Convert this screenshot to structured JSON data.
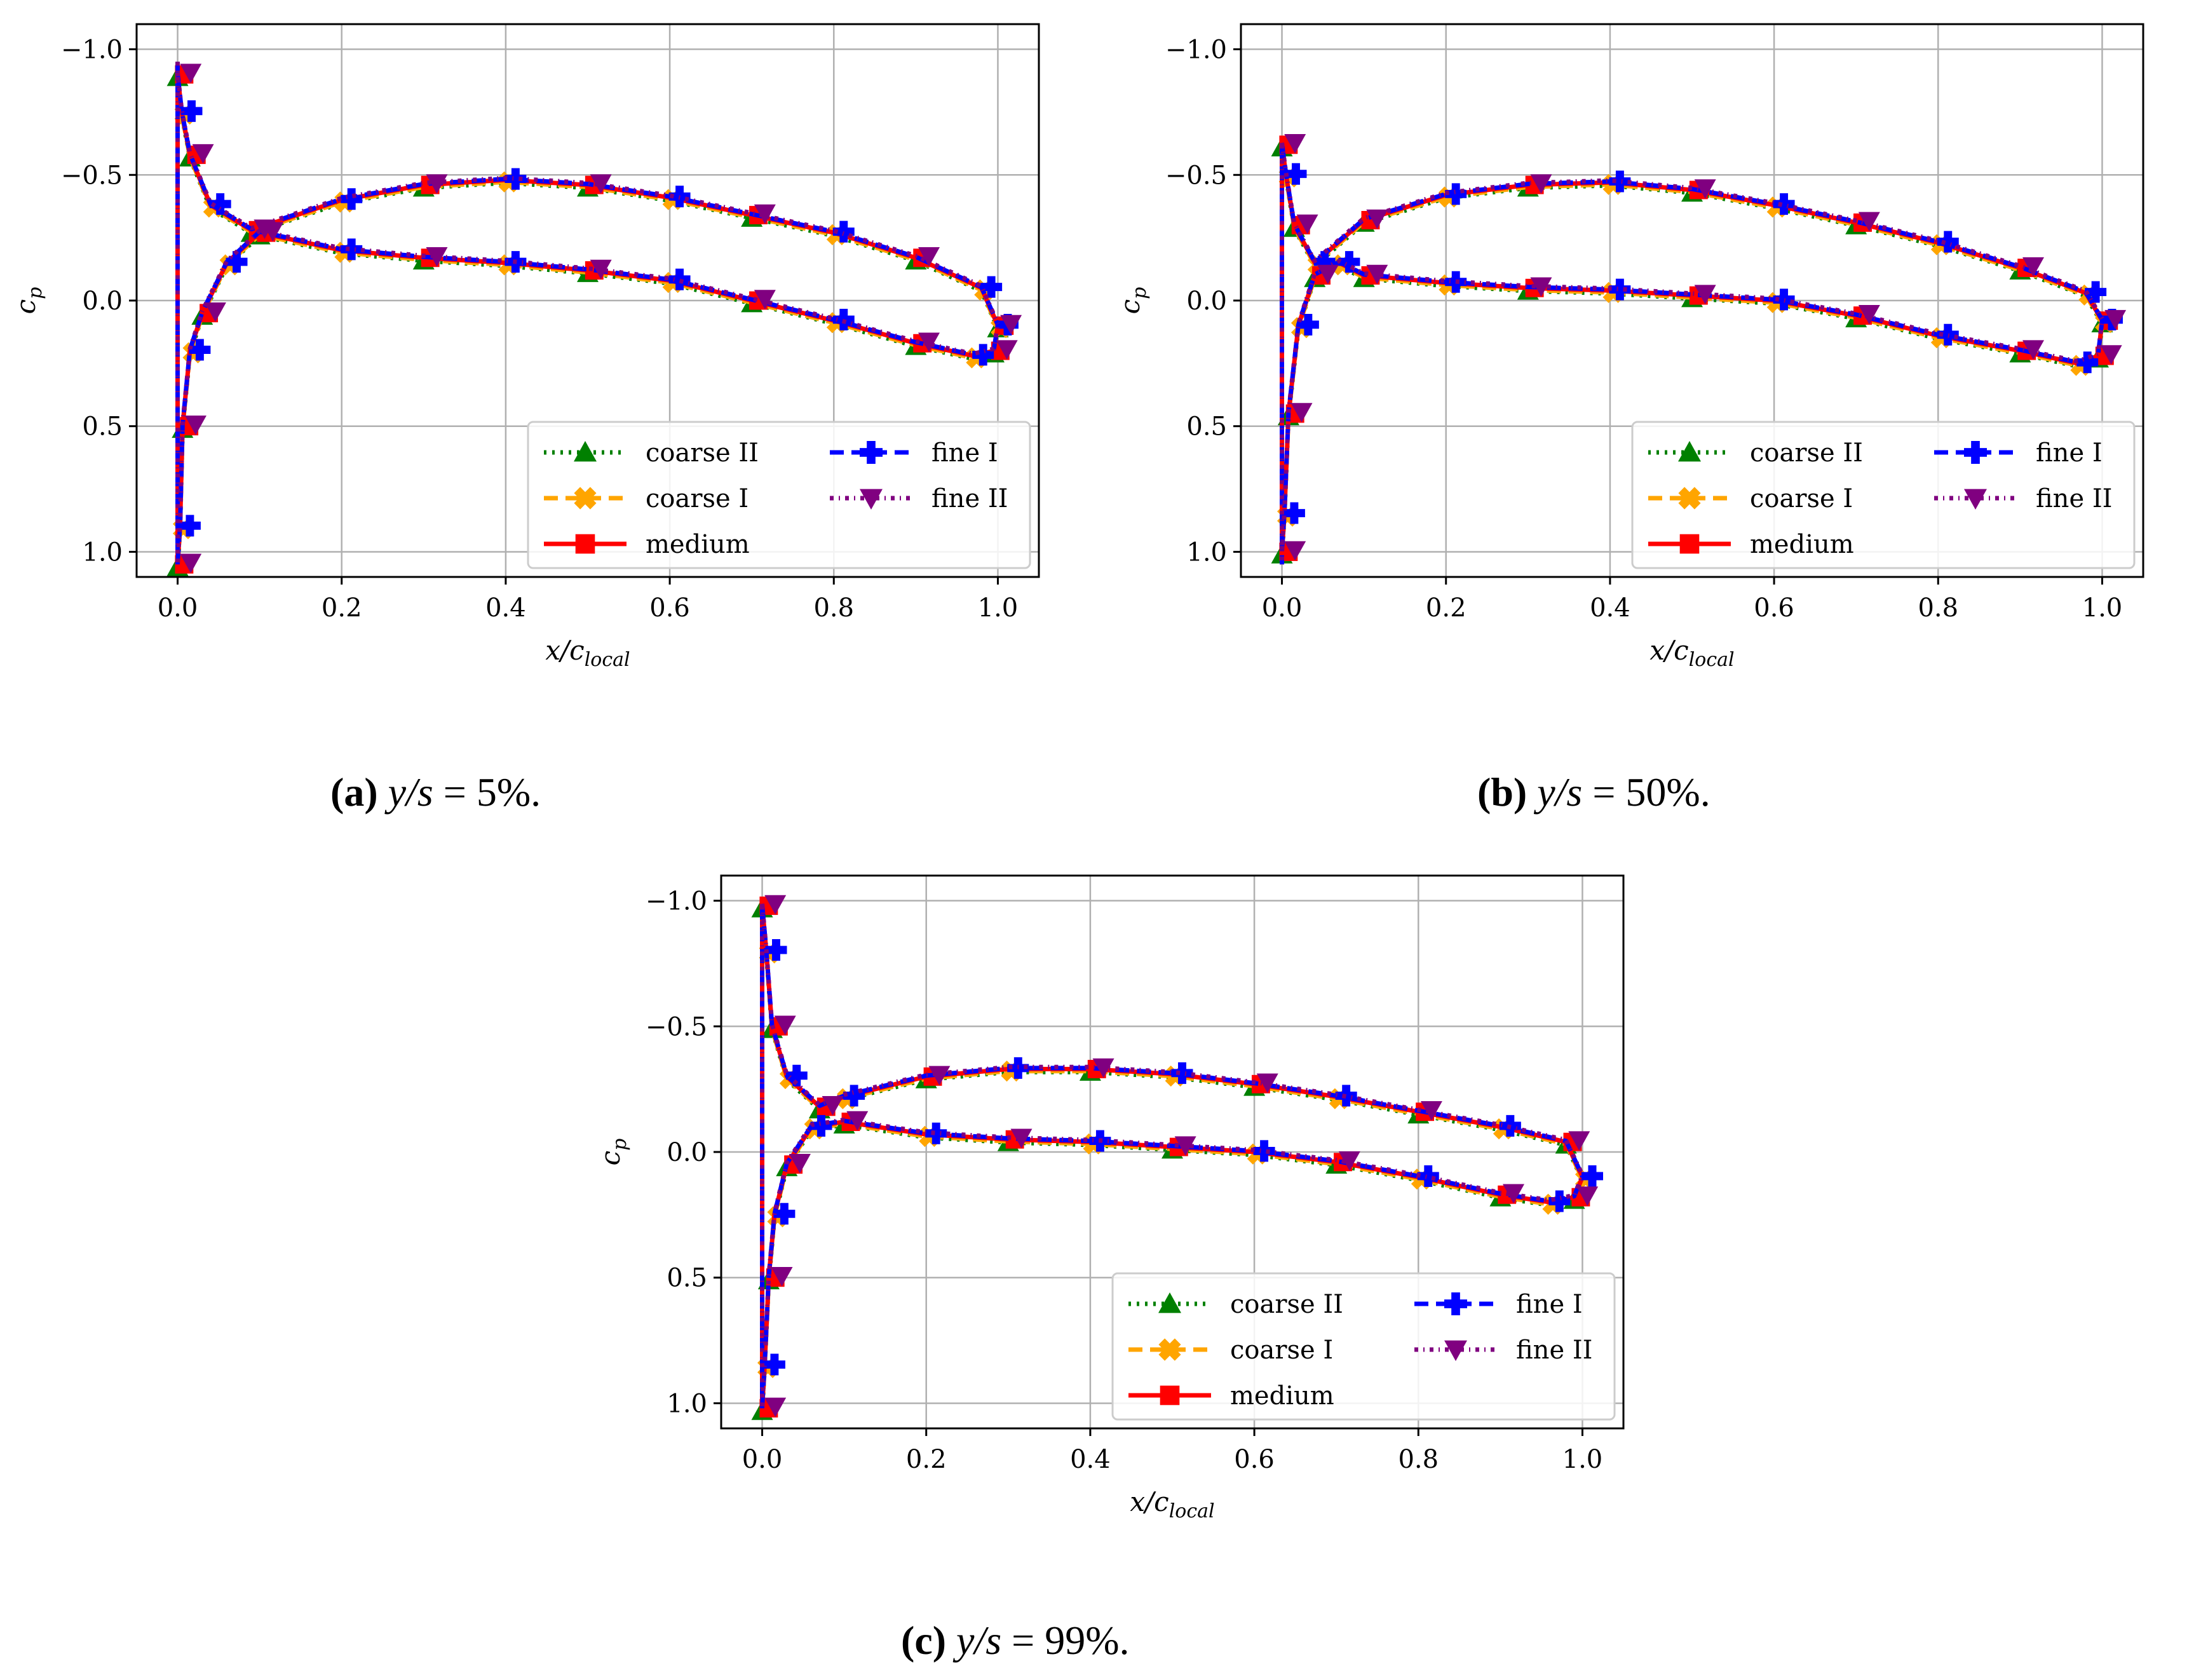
{
  "series_styles": [
    {
      "key": "coarse_ii",
      "name": "coarse II",
      "color": "#008000",
      "marker": "triangle-up",
      "dash": "dotted",
      "jitter": 0.012
    },
    {
      "key": "coarse_i",
      "name": "coarse I",
      "color": "#FFA500",
      "marker": "x-filled",
      "dash": "dashed",
      "jitter": 0.008
    },
    {
      "key": "medium",
      "name": "medium",
      "color": "#FF0000",
      "marker": "square",
      "dash": "solid",
      "jitter": 0.0
    },
    {
      "key": "fine_i",
      "name": "fine I",
      "color": "#0000FF",
      "marker": "plus-filled",
      "dash": "dashed",
      "jitter": -0.004
    },
    {
      "key": "fine_ii",
      "name": "fine II",
      "color": "#800080",
      "marker": "triangle-down",
      "dash": "dashdot",
      "jitter": -0.008
    }
  ],
  "chart_data": [
    {
      "id": "a",
      "type": "line",
      "xlabel": "x/c",
      "xlabel_sub": "local",
      "ylabel": "c",
      "ylabel_sub": "p",
      "xlim": [
        -0.05,
        1.05
      ],
      "ylim": [
        1.1,
        -1.1
      ],
      "y_inverted": true,
      "xticks": [
        0.0,
        0.2,
        0.4,
        0.6,
        0.8,
        1.0
      ],
      "xtick_labels": [
        "0.0",
        "0.2",
        "0.4",
        "0.6",
        "0.8",
        "1.0"
      ],
      "yticks": [
        -1.0,
        -0.5,
        0.0,
        0.5,
        1.0
      ],
      "ytick_labels": [
        "−1.0",
        "−0.5",
        "0.0",
        "0.5",
        "1.0"
      ],
      "grid": true,
      "legend_position": "lower-right",
      "legend_columns": 2,
      "caption_tag": "(a)",
      "caption_math": "y/s",
      "caption_value": " = 5%.",
      "suction_side": [
        [
          0.0,
          -0.9
        ],
        [
          0.005,
          -0.75
        ],
        [
          0.015,
          -0.58
        ],
        [
          0.04,
          -0.38
        ],
        [
          0.09,
          -0.28
        ],
        [
          0.2,
          -0.4
        ],
        [
          0.3,
          -0.46
        ],
        [
          0.4,
          -0.48
        ],
        [
          0.5,
          -0.46
        ],
        [
          0.6,
          -0.41
        ],
        [
          0.7,
          -0.34
        ],
        [
          0.8,
          -0.27
        ],
        [
          0.9,
          -0.17
        ],
        [
          0.98,
          -0.05
        ],
        [
          1.0,
          0.1
        ]
      ],
      "pressure_side": [
        [
          0.0,
          1.05
        ],
        [
          0.003,
          0.9
        ],
        [
          0.006,
          0.5
        ],
        [
          0.015,
          0.2
        ],
        [
          0.03,
          0.05
        ],
        [
          0.06,
          -0.15
        ],
        [
          0.1,
          -0.27
        ],
        [
          0.2,
          -0.2
        ],
        [
          0.3,
          -0.17
        ],
        [
          0.4,
          -0.15
        ],
        [
          0.5,
          -0.12
        ],
        [
          0.6,
          -0.08
        ],
        [
          0.7,
          0.0
        ],
        [
          0.8,
          0.08
        ],
        [
          0.9,
          0.17
        ],
        [
          0.97,
          0.22
        ],
        [
          0.995,
          0.2
        ],
        [
          1.0,
          0.1
        ]
      ],
      "stagnation_spike": [
        [
          0.0,
          -0.95
        ],
        [
          0.0,
          1.05
        ]
      ]
    },
    {
      "id": "b",
      "type": "line",
      "xlabel": "x/c",
      "xlabel_sub": "local",
      "ylabel": "c",
      "ylabel_sub": "p",
      "xlim": [
        -0.05,
        1.05
      ],
      "ylim": [
        1.1,
        -1.1
      ],
      "y_inverted": true,
      "xticks": [
        0.0,
        0.2,
        0.4,
        0.6,
        0.8,
        1.0
      ],
      "xtick_labels": [
        "0.0",
        "0.2",
        "0.4",
        "0.6",
        "0.8",
        "1.0"
      ],
      "yticks": [
        -1.0,
        -0.5,
        0.0,
        0.5,
        1.0
      ],
      "ytick_labels": [
        "−1.0",
        "−0.5",
        "0.0",
        "0.5",
        "1.0"
      ],
      "grid": true,
      "legend_position": "lower-right",
      "legend_columns": 2,
      "caption_tag": "(b)",
      "caption_math": "y/s",
      "caption_value": " = 50%.",
      "suction_side": [
        [
          0.0,
          -0.62
        ],
        [
          0.005,
          -0.5
        ],
        [
          0.015,
          -0.3
        ],
        [
          0.04,
          -0.15
        ],
        [
          0.1,
          -0.32
        ],
        [
          0.2,
          -0.42
        ],
        [
          0.3,
          -0.46
        ],
        [
          0.4,
          -0.47
        ],
        [
          0.5,
          -0.44
        ],
        [
          0.6,
          -0.38
        ],
        [
          0.7,
          -0.31
        ],
        [
          0.8,
          -0.23
        ],
        [
          0.9,
          -0.13
        ],
        [
          0.98,
          -0.03
        ],
        [
          1.0,
          0.08
        ]
      ],
      "pressure_side": [
        [
          0.0,
          1.0
        ],
        [
          0.003,
          0.85
        ],
        [
          0.008,
          0.45
        ],
        [
          0.02,
          0.1
        ],
        [
          0.04,
          -0.1
        ],
        [
          0.07,
          -0.15
        ],
        [
          0.1,
          -0.1
        ],
        [
          0.2,
          -0.07
        ],
        [
          0.3,
          -0.05
        ],
        [
          0.4,
          -0.04
        ],
        [
          0.5,
          -0.02
        ],
        [
          0.6,
          0.0
        ],
        [
          0.7,
          0.06
        ],
        [
          0.8,
          0.14
        ],
        [
          0.9,
          0.2
        ],
        [
          0.97,
          0.25
        ],
        [
          0.995,
          0.22
        ],
        [
          1.0,
          0.08
        ]
      ],
      "stagnation_spike": [
        [
          0.0,
          -0.62
        ],
        [
          0.0,
          1.05
        ]
      ]
    },
    {
      "id": "c",
      "type": "line",
      "xlabel": "x/c",
      "xlabel_sub": "local",
      "ylabel": "c",
      "ylabel_sub": "p",
      "xlim": [
        -0.05,
        1.05
      ],
      "ylim": [
        1.1,
        -1.1
      ],
      "y_inverted": true,
      "xticks": [
        0.0,
        0.2,
        0.4,
        0.6,
        0.8,
        1.0
      ],
      "xtick_labels": [
        "0.0",
        "0.2",
        "0.4",
        "0.6",
        "0.8",
        "1.0"
      ],
      "yticks": [
        -1.0,
        -0.5,
        0.0,
        0.5,
        1.0
      ],
      "ytick_labels": [
        "−1.0",
        "−0.5",
        "0.0",
        "0.5",
        "1.0"
      ],
      "grid": true,
      "legend_position": "lower-right",
      "legend_columns": 2,
      "caption_tag": "(c)",
      "caption_math": "y/s",
      "caption_value": " = 99%.",
      "suction_side": [
        [
          0.0,
          -0.98
        ],
        [
          0.005,
          -0.8
        ],
        [
          0.012,
          -0.5
        ],
        [
          0.03,
          -0.3
        ],
        [
          0.07,
          -0.18
        ],
        [
          0.1,
          -0.22
        ],
        [
          0.2,
          -0.3
        ],
        [
          0.3,
          -0.33
        ],
        [
          0.4,
          -0.33
        ],
        [
          0.5,
          -0.31
        ],
        [
          0.6,
          -0.27
        ],
        [
          0.7,
          -0.22
        ],
        [
          0.8,
          -0.16
        ],
        [
          0.9,
          -0.1
        ],
        [
          0.98,
          -0.04
        ],
        [
          1.0,
          0.1
        ]
      ],
      "pressure_side": [
        [
          0.0,
          1.02
        ],
        [
          0.003,
          0.85
        ],
        [
          0.008,
          0.5
        ],
        [
          0.015,
          0.25
        ],
        [
          0.03,
          0.05
        ],
        [
          0.06,
          -0.1
        ],
        [
          0.1,
          -0.12
        ],
        [
          0.2,
          -0.07
        ],
        [
          0.3,
          -0.05
        ],
        [
          0.4,
          -0.04
        ],
        [
          0.5,
          -0.02
        ],
        [
          0.6,
          0.0
        ],
        [
          0.7,
          0.04
        ],
        [
          0.8,
          0.1
        ],
        [
          0.9,
          0.17
        ],
        [
          0.96,
          0.2
        ],
        [
          0.99,
          0.18
        ],
        [
          1.0,
          0.1
        ]
      ],
      "stagnation_spike": [
        [
          0.0,
          -0.98
        ],
        [
          0.0,
          1.02
        ]
      ]
    }
  ]
}
